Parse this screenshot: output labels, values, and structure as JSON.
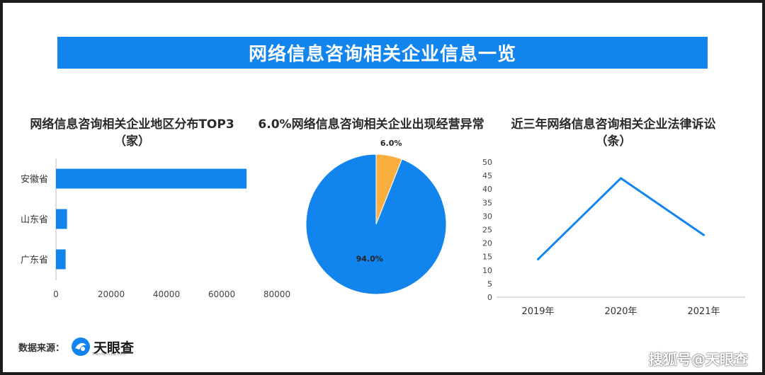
{
  "banner_title": "网络信息咨询相关企业信息一览",
  "colors": {
    "primary": "#1184ee",
    "accent": "#f9ae3f"
  },
  "chart_data": [
    {
      "type": "bar",
      "orientation": "horizontal",
      "title": "网络信息咨询相关企业地区分布TOP3",
      "title_unit": "（家）",
      "categories": [
        "安徽省",
        "山东省",
        "广东省"
      ],
      "values": [
        69000,
        4000,
        3500
      ],
      "xlim": [
        0,
        80000
      ],
      "xticks": [
        "0",
        "20000",
        "40000",
        "60000",
        "80000"
      ]
    },
    {
      "type": "pie",
      "title": "6.0%网络信息咨询相关企业出现经营异常",
      "slices": [
        {
          "label": "6.0%",
          "value": 6.0,
          "color": "#f9ae3f"
        },
        {
          "label": "94.0%",
          "value": 94.0,
          "color": "#1184ee"
        }
      ]
    },
    {
      "type": "line",
      "title": "近三年网络信息咨询相关企业法律诉讼",
      "title_unit": "（条）",
      "categories": [
        "2019年",
        "2020年",
        "2021年"
      ],
      "values": [
        14,
        44,
        23
      ],
      "ylim": [
        0,
        50
      ],
      "yticks": [
        "0",
        "5",
        "10",
        "15",
        "20",
        "25",
        "30",
        "35",
        "40",
        "45",
        "50"
      ]
    }
  ],
  "footer": {
    "source_label": "数据来源：",
    "brand_name": "天眼查",
    "brand_sub": "TianYanCha.com",
    "watermark": "搜狐号@天眼查"
  }
}
